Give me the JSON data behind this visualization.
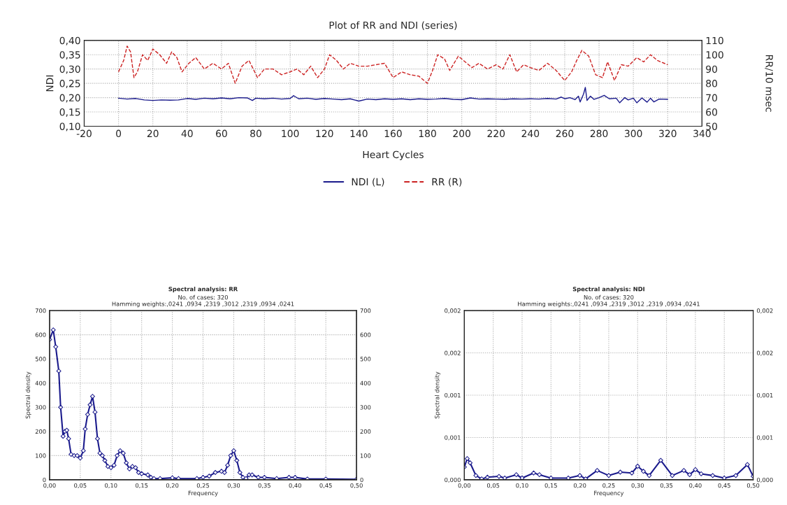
{
  "chart_data": [
    {
      "type": "line",
      "title": "Plot of RR and NDI (series)",
      "xlabel": "Heart Cycles",
      "ylabel": "NDI",
      "y2label": "RR/10 msec",
      "xlim": [
        -20,
        340
      ],
      "xticks": [
        -20,
        0,
        20,
        40,
        60,
        80,
        100,
        120,
        140,
        160,
        180,
        200,
        220,
        240,
        260,
        280,
        300,
        320,
        340
      ],
      "ylim": [
        0.1,
        0.4
      ],
      "yticks": [
        {
          "value": 0.1,
          "label": "0,10"
        },
        {
          "value": 0.15,
          "label": "0,15"
        },
        {
          "value": 0.2,
          "label": "0,20"
        },
        {
          "value": 0.25,
          "label": "0,25"
        },
        {
          "value": 0.3,
          "label": "0,30"
        },
        {
          "value": 0.35,
          "label": "0,35"
        },
        {
          "value": 0.4,
          "label": "0,40"
        }
      ],
      "y2lim": [
        50,
        110
      ],
      "y2ticks": [
        50,
        60,
        70,
        80,
        90,
        100,
        110
      ],
      "grid": true,
      "legend": "bottom",
      "marker": "none",
      "series": [
        {
          "name": "NDI (L)",
          "color": "#1a1a8c",
          "line_style": "solid",
          "x": [
            0,
            5,
            10,
            15,
            20,
            25,
            30,
            35,
            40,
            45,
            50,
            55,
            60,
            65,
            70,
            75,
            78,
            80,
            85,
            90,
            95,
            100,
            102,
            105,
            110,
            115,
            120,
            125,
            130,
            135,
            140,
            145,
            150,
            155,
            160,
            165,
            170,
            175,
            180,
            185,
            190,
            195,
            200,
            205,
            210,
            215,
            220,
            225,
            230,
            235,
            240,
            245,
            250,
            255,
            258,
            260,
            263,
            266,
            268,
            269,
            271,
            272,
            273,
            275,
            277,
            280,
            283,
            286,
            290,
            292,
            295,
            297,
            300,
            302,
            305,
            308,
            310,
            312,
            315,
            320
          ],
          "values": [
            0.198,
            0.195,
            0.197,
            0.192,
            0.19,
            0.192,
            0.191,
            0.192,
            0.197,
            0.194,
            0.198,
            0.196,
            0.199,
            0.196,
            0.2,
            0.199,
            0.19,
            0.198,
            0.196,
            0.198,
            0.195,
            0.197,
            0.207,
            0.196,
            0.198,
            0.194,
            0.197,
            0.195,
            0.193,
            0.196,
            0.188,
            0.195,
            0.193,
            0.196,
            0.194,
            0.196,
            0.193,
            0.196,
            0.194,
            0.195,
            0.197,
            0.194,
            0.193,
            0.199,
            0.195,
            0.196,
            0.195,
            0.194,
            0.196,
            0.195,
            0.196,
            0.195,
            0.197,
            0.195,
            0.202,
            0.196,
            0.2,
            0.193,
            0.205,
            0.185,
            0.213,
            0.236,
            0.19,
            0.205,
            0.194,
            0.2,
            0.208,
            0.196,
            0.198,
            0.182,
            0.2,
            0.192,
            0.198,
            0.182,
            0.199,
            0.184,
            0.198,
            0.185,
            0.195,
            0.194
          ]
        },
        {
          "name": "RR (R)",
          "color": "#cc2222",
          "line_style": "dashed",
          "axis": "y2",
          "x": [
            0,
            3,
            5,
            7,
            9,
            11,
            14,
            17,
            20,
            24,
            28,
            31,
            34,
            37,
            41,
            45,
            50,
            55,
            60,
            64,
            68,
            72,
            76,
            81,
            85,
            90,
            95,
            100,
            104,
            108,
            112,
            116,
            120,
            123,
            127,
            131,
            135,
            140,
            145,
            150,
            155,
            160,
            165,
            170,
            175,
            180,
            183,
            186,
            190,
            193,
            198,
            202,
            206,
            210,
            215,
            220,
            224,
            228,
            232,
            236,
            240,
            245,
            250,
            255,
            260,
            264,
            267,
            270,
            274,
            278,
            282,
            285,
            289,
            293,
            297,
            302,
            306,
            310,
            314,
            318,
            320
          ],
          "values": [
            88,
            96,
            106,
            102,
            84,
            88,
            100,
            96,
            104,
            100,
            94,
            102,
            98,
            88,
            94,
            98,
            90,
            94,
            90,
            94,
            80,
            92,
            96,
            84,
            90,
            90,
            86,
            88,
            90,
            86,
            92,
            84,
            90,
            100,
            96,
            90,
            94,
            92,
            92,
            93,
            94,
            84,
            88,
            86,
            85,
            80,
            89,
            100,
            97,
            89,
            99,
            95,
            91,
            94,
            90,
            93,
            90,
            100,
            88,
            93,
            91,
            89,
            94,
            89,
            82,
            88,
            96,
            103,
            99,
            86,
            84,
            95,
            82,
            93,
            92,
            98,
            95,
            100,
            96,
            94,
            93
          ]
        }
      ]
    },
    {
      "type": "line",
      "title": "Spectral analysis: RR",
      "subtitle": "No. of cases: 320\nHamming weights:,0241 ,0934 ,2319 ,3012 ,2319 ,0934 ,0241",
      "xlabel": "Frequency",
      "ylabel": "Spectral density",
      "xlim": [
        0,
        0.5
      ],
      "xticks": [
        {
          "value": 0,
          "label": "0,00"
        },
        {
          "value": 0.05,
          "label": "0,05"
        },
        {
          "value": 0.1,
          "label": "0,10"
        },
        {
          "value": 0.15,
          "label": "0,15"
        },
        {
          "value": 0.2,
          "label": "0,20"
        },
        {
          "value": 0.25,
          "label": "0,25"
        },
        {
          "value": 0.3,
          "label": "0,30"
        },
        {
          "value": 0.35,
          "label": "0,35"
        },
        {
          "value": 0.4,
          "label": "0,40"
        },
        {
          "value": 0.45,
          "label": "0,45"
        },
        {
          "value": 0.5,
          "label": "0,50"
        }
      ],
      "ylim": [
        0,
        700
      ],
      "yticks": [
        0,
        100,
        200,
        300,
        400,
        500,
        600,
        700
      ],
      "y2lim": [
        0,
        700
      ],
      "y2ticks": [
        0,
        100,
        200,
        300,
        400,
        500,
        600,
        700
      ],
      "grid": true,
      "marker": "diamond",
      "series": [
        {
          "color": "#1a1a8c",
          "line_style": "solid",
          "x": [
            0,
            0.006,
            0.01,
            0.015,
            0.018,
            0.022,
            0.025,
            0.028,
            0.031,
            0.035,
            0.04,
            0.045,
            0.05,
            0.055,
            0.058,
            0.062,
            0.066,
            0.07,
            0.074,
            0.078,
            0.082,
            0.086,
            0.09,
            0.095,
            0.1,
            0.105,
            0.11,
            0.115,
            0.12,
            0.125,
            0.13,
            0.135,
            0.14,
            0.145,
            0.15,
            0.16,
            0.165,
            0.17,
            0.18,
            0.2,
            0.21,
            0.24,
            0.25,
            0.26,
            0.27,
            0.28,
            0.285,
            0.29,
            0.295,
            0.3,
            0.305,
            0.31,
            0.315,
            0.32,
            0.325,
            0.33,
            0.34,
            0.35,
            0.37,
            0.39,
            0.4,
            0.42,
            0.45,
            0.5
          ],
          "values": [
            580,
            620,
            550,
            450,
            300,
            180,
            200,
            205,
            170,
            105,
            100,
            100,
            90,
            120,
            210,
            270,
            310,
            345,
            280,
            170,
            110,
            100,
            80,
            55,
            50,
            60,
            100,
            120,
            110,
            70,
            45,
            55,
            50,
            30,
            25,
            20,
            10,
            5,
            5,
            8,
            5,
            5,
            10,
            15,
            30,
            35,
            30,
            60,
            100,
            120,
            80,
            30,
            10,
            5,
            20,
            20,
            10,
            10,
            5,
            10,
            10,
            3,
            3,
            2
          ]
        }
      ]
    },
    {
      "type": "line",
      "title": "Spectral analysis: NDI",
      "subtitle": "No. of cases: 320\nHamming weights:,0241 ,0934 ,2319 ,3012 ,2319 ,0934 ,0241",
      "xlabel": "Frequency",
      "ylabel": "Spectral density",
      "xlim": [
        0,
        0.5
      ],
      "xticks": [
        {
          "value": 0,
          "label": "0,00"
        },
        {
          "value": 0.05,
          "label": "0,05"
        },
        {
          "value": 0.1,
          "label": "0,10"
        },
        {
          "value": 0.15,
          "label": "0,15"
        },
        {
          "value": 0.2,
          "label": "0,20"
        },
        {
          "value": 0.25,
          "label": "0,25"
        },
        {
          "value": 0.3,
          "label": "0,30"
        },
        {
          "value": 0.35,
          "label": "0,35"
        },
        {
          "value": 0.4,
          "label": "0,40"
        },
        {
          "value": 0.45,
          "label": "0,45"
        },
        {
          "value": 0.5,
          "label": "0,50"
        }
      ],
      "ylim": [
        0,
        0.002
      ],
      "yticks": [
        {
          "value": 0,
          "label": "0,000"
        },
        {
          "value": 0.0005,
          "label": "0,001"
        },
        {
          "value": 0.001,
          "label": "0,001"
        },
        {
          "value": 0.0015,
          "label": "0,002"
        },
        {
          "value": 0.002,
          "label": "0,002"
        }
      ],
      "y2lim": [
        0,
        0.002
      ],
      "y2ticks": [
        {
          "value": 0,
          "label": "0,000"
        },
        {
          "value": 0.0005,
          "label": "0,001"
        },
        {
          "value": 0.001,
          "label": "0,001"
        },
        {
          "value": 0.0015,
          "label": "0,002"
        },
        {
          "value": 0.002,
          "label": "0,002"
        }
      ],
      "grid": true,
      "marker": "diamond",
      "series": [
        {
          "color": "#1a1a8c",
          "line_style": "solid",
          "x": [
            0,
            0.005,
            0.01,
            0.02,
            0.03,
            0.04,
            0.06,
            0.07,
            0.09,
            0.1,
            0.12,
            0.13,
            0.15,
            0.18,
            0.2,
            0.21,
            0.23,
            0.25,
            0.27,
            0.29,
            0.3,
            0.31,
            0.32,
            0.34,
            0.36,
            0.38,
            0.39,
            0.4,
            0.41,
            0.43,
            0.45,
            0.47,
            0.49,
            0.5
          ],
          "values": [
            0.00015,
            0.00025,
            0.0002,
            5e-05,
            1e-05,
            3e-05,
            4e-05,
            2e-05,
            6e-05,
            2e-05,
            8e-05,
            6e-05,
            2e-05,
            2e-05,
            5e-05,
            1e-05,
            0.00011,
            5e-05,
            9e-05,
            8e-05,
            0.00016,
            0.0001,
            5e-05,
            0.00023,
            5e-05,
            0.00011,
            6e-05,
            0.00012,
            7e-05,
            5e-05,
            2e-05,
            5e-05,
            0.00018,
            4e-05
          ]
        }
      ]
    }
  ]
}
